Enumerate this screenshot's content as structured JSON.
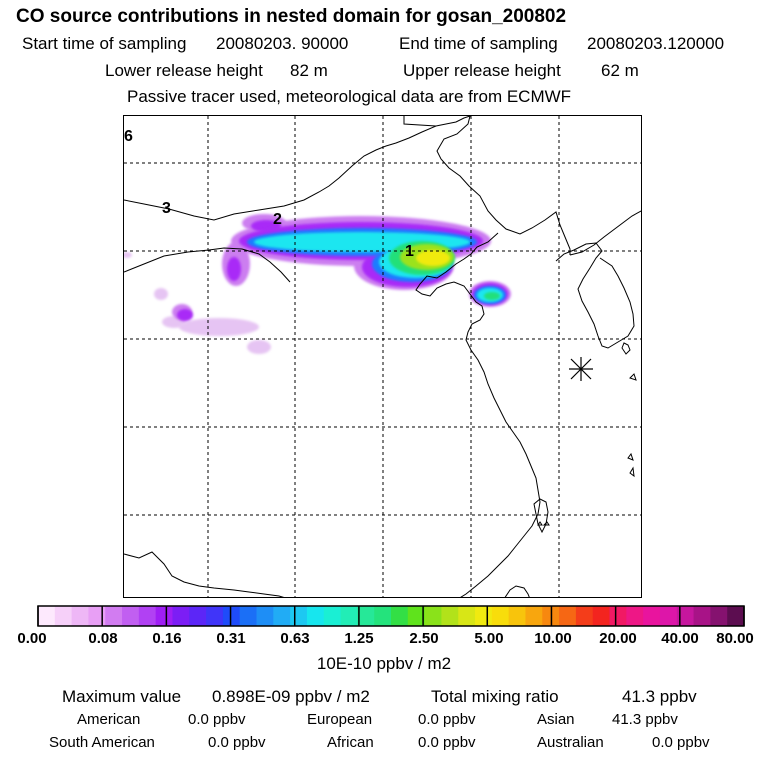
{
  "header": {
    "title": "CO  source contributions in nested domain for gosan_200802",
    "start_label": "Start time of sampling",
    "start_value": "20080203. 90000",
    "end_label": "End time of sampling",
    "end_value": "20080203.120000",
    "lower_label": "Lower release height",
    "lower_value": "82 m",
    "upper_label": "Upper release height",
    "upper_value": "62 m",
    "note": "Passive tracer used, meteorological data are from ECMWF"
  },
  "map": {
    "region_labels": [
      "6",
      "3",
      "2",
      "1"
    ],
    "receptor_icon": "asterisk-receptor-icon",
    "plume_colors": {
      "faint": "#e6c4f3",
      "light": "#cc7ef0",
      "purple": "#a92bf7",
      "blue": "#1f7bff",
      "cyan": "#1fe6f0",
      "green": "#22e07a",
      "lime": "#9be21a",
      "yellow": "#f0ea10"
    }
  },
  "colorbar": {
    "colors": [
      "#fde9fd",
      "#f6d0f9",
      "#eeb7f6",
      "#e89ff5",
      "#d27cf1",
      "#c15ff1",
      "#b141f3",
      "#9f1ef4",
      "#7c1ef5",
      "#5c26f7",
      "#4035f9",
      "#1f4cfa",
      "#1b6ff6",
      "#1e8ef6",
      "#21acf5",
      "#1dc8f1",
      "#17e6ee",
      "#1aefd4",
      "#22edb6",
      "#26e898",
      "#24e37c",
      "#33df45",
      "#5fe31c",
      "#8ae21a",
      "#b2e21a",
      "#d8e616",
      "#f0ea10",
      "#f8dd0b",
      "#f8c40c",
      "#f8a60e",
      "#f7880f",
      "#f66714",
      "#f43d1a",
      "#f3241f",
      "#f11964",
      "#ee1786",
      "#e9149e",
      "#dd16a9",
      "#c6169e",
      "#a81387",
      "#85126f",
      "#5c0d50"
    ],
    "labels": [
      "0.00",
      "0.08",
      "0.16",
      "0.31",
      "0.63",
      "1.25",
      "2.50",
      "5.00",
      "10.00",
      "20.00",
      "40.00",
      "80.00"
    ],
    "units": "10E-10 ppbv / m2"
  },
  "summary": {
    "max_label": "Maximum value",
    "max_value": "0.898E-09 ppbv / m2",
    "total_label": "Total mixing ratio",
    "total_value": "41.3 ppbv",
    "american_label": "American",
    "american_value": "0.0 ppbv",
    "european_label": "European",
    "european_value": "0.0 ppbv",
    "asian_label": "Asian",
    "asian_value": "41.3 ppbv",
    "south_american_label": "South American",
    "south_american_value": "0.0 ppbv",
    "african_label": "African",
    "african_value": "0.0 ppbv",
    "australian_label": "Australian",
    "australian_value": "0.0 ppbv"
  }
}
